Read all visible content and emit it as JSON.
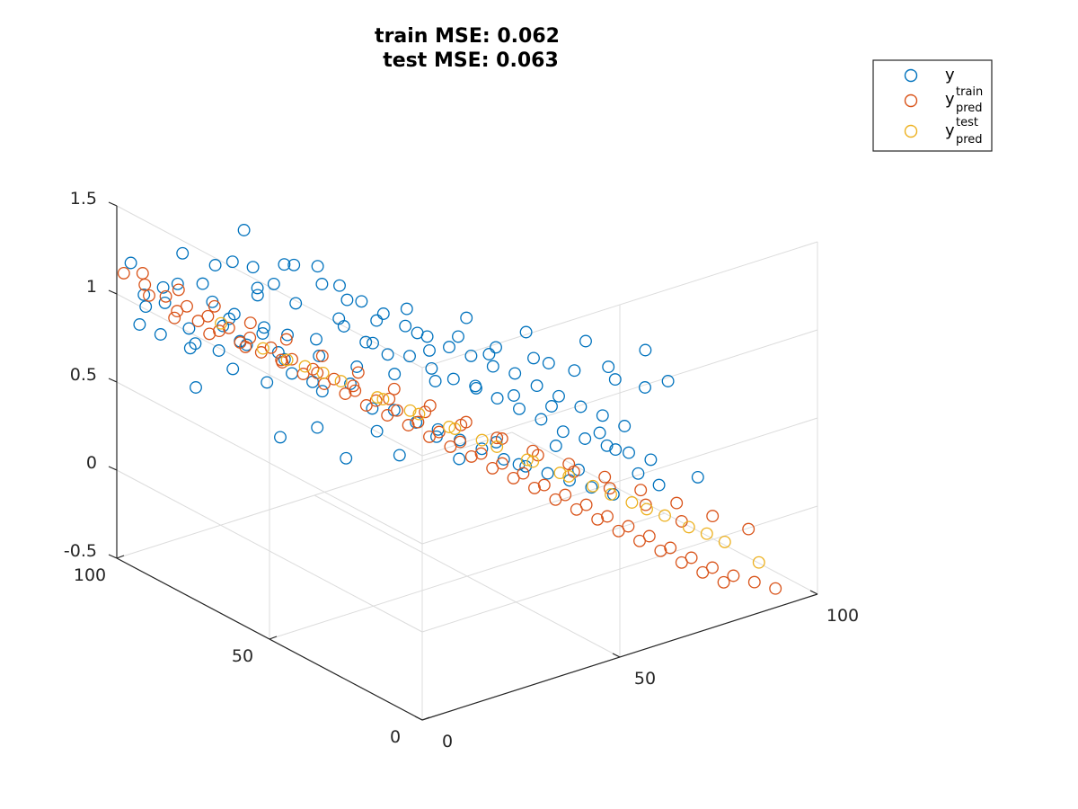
{
  "chart_data": {
    "type": "scatter",
    "title_lines": [
      "train MSE: 0.062",
      "test MSE: 0.063"
    ],
    "axes": {
      "x": {
        "ticks": [
          "0",
          "50",
          "100"
        ],
        "range": [
          0,
          100
        ]
      },
      "y": {
        "ticks": [
          "0",
          "50",
          "100"
        ],
        "range": [
          0,
          100
        ]
      },
      "z": {
        "ticks": [
          "-0.5",
          "0",
          "0.5",
          "1",
          "1.5"
        ],
        "range": [
          -0.5,
          1.5
        ]
      }
    },
    "grid": true,
    "legend_position": "top-right",
    "series": [
      {
        "key": "y",
        "label_base": "y",
        "label_sup": "",
        "label_sub": "",
        "color": "#0072BD",
        "description_points": "noisy targets, ~1000 points, spread ±0.35 around plane",
        "points": [
          [
            2,
            98,
            1.18
          ],
          [
            3,
            95,
            1.02
          ],
          [
            5,
            97,
            0.92
          ],
          [
            4,
            90,
            1.1
          ],
          [
            6,
            92,
            0.98
          ],
          [
            8,
            96,
            0.75
          ],
          [
            10,
            93,
            1.05
          ],
          [
            9,
            88,
            0.85
          ],
          [
            12,
            94,
            1.2
          ],
          [
            14,
            90,
            1.05
          ],
          [
            15,
            86,
            0.7
          ],
          [
            13,
            80,
            0.95
          ],
          [
            18,
            92,
            0.9
          ],
          [
            20,
            88,
            1.15
          ],
          [
            17,
            84,
            0.6
          ],
          [
            22,
            90,
            0.82
          ],
          [
            24,
            85,
            1.0
          ],
          [
            26,
            92,
            1.25
          ],
          [
            21,
            78,
            0.55
          ],
          [
            28,
            88,
            0.72
          ],
          [
            30,
            84,
            1.1
          ],
          [
            27,
            80,
            0.62
          ],
          [
            32,
            90,
            0.92
          ],
          [
            34,
            86,
            1.05
          ],
          [
            31,
            76,
            0.5
          ],
          [
            36,
            88,
            0.8
          ],
          [
            38,
            82,
            0.95
          ],
          [
            35,
            78,
            0.4
          ],
          [
            40,
            86,
            1.0
          ],
          [
            42,
            80,
            0.7
          ],
          [
            39,
            74,
            0.45
          ],
          [
            44,
            84,
            0.88
          ],
          [
            46,
            78,
            0.6
          ],
          [
            43,
            72,
            0.3
          ],
          [
            48,
            82,
            0.78
          ],
          [
            50,
            76,
            0.52
          ],
          [
            47,
            70,
            0.28
          ],
          [
            52,
            80,
            0.7
          ],
          [
            54,
            74,
            0.5
          ],
          [
            51,
            68,
            0.2
          ],
          [
            56,
            78,
            0.62
          ],
          [
            58,
            72,
            0.42
          ],
          [
            55,
            66,
            0.15
          ],
          [
            60,
            76,
            0.55
          ],
          [
            62,
            70,
            0.35
          ],
          [
            59,
            64,
            0.08
          ],
          [
            64,
            74,
            0.48
          ],
          [
            66,
            68,
            0.3
          ],
          [
            63,
            62,
            0.02
          ],
          [
            68,
            72,
            0.42
          ],
          [
            70,
            66,
            0.22
          ],
          [
            67,
            60,
            -0.05
          ],
          [
            72,
            70,
            0.35
          ],
          [
            74,
            64,
            0.15
          ],
          [
            71,
            58,
            -0.1
          ],
          [
            76,
            68,
            0.3
          ],
          [
            78,
            62,
            0.08
          ],
          [
            75,
            56,
            -0.15
          ],
          [
            80,
            66,
            0.22
          ],
          [
            82,
            60,
            0.0
          ],
          [
            79,
            54,
            -0.2
          ],
          [
            84,
            64,
            0.15
          ],
          [
            86,
            58,
            -0.05
          ],
          [
            83,
            52,
            -0.25
          ],
          [
            88,
            62,
            0.08
          ],
          [
            90,
            56,
            -0.1
          ],
          [
            87,
            50,
            -0.3
          ],
          [
            92,
            60,
            0.02
          ],
          [
            94,
            54,
            -0.15
          ],
          [
            96,
            58,
            -0.05
          ],
          [
            98,
            52,
            -0.2
          ],
          [
            97,
            48,
            -0.3
          ],
          [
            5,
            99,
            0.8
          ],
          [
            7,
            85,
            0.78
          ],
          [
            11,
            82,
            1.25
          ],
          [
            16,
            95,
            0.65
          ],
          [
            19,
            80,
            1.2
          ],
          [
            23,
            95,
            0.7
          ],
          [
            25,
            75,
            0.6
          ],
          [
            29,
            95,
            0.55
          ],
          [
            33,
            70,
            0.9
          ],
          [
            37,
            95,
            0.45
          ],
          [
            41,
            68,
            0.85
          ],
          [
            45,
            92,
            0.4
          ],
          [
            49,
            65,
            0.75
          ],
          [
            53,
            90,
            0.3
          ],
          [
            57,
            62,
            0.7
          ],
          [
            61,
            88,
            0.22
          ],
          [
            65,
            60,
            0.6
          ],
          [
            69,
            85,
            0.15
          ],
          [
            73,
            58,
            0.5
          ],
          [
            77,
            82,
            0.08
          ],
          [
            81,
            55,
            0.4
          ],
          [
            85,
            80,
            0.0
          ],
          [
            89,
            52,
            0.32
          ],
          [
            93,
            78,
            -0.1
          ],
          [
            95,
            50,
            0.25
          ],
          [
            99,
            70,
            -0.22
          ],
          [
            3,
            78,
            0.65
          ],
          [
            8,
            70,
            0.95
          ],
          [
            14,
            72,
            1.15
          ],
          [
            20,
            70,
            0.9
          ],
          [
            26,
            68,
            0.35
          ],
          [
            32,
            66,
            1.05
          ],
          [
            38,
            64,
            0.28
          ],
          [
            44,
            62,
            0.95
          ],
          [
            50,
            60,
            0.2
          ],
          [
            56,
            58,
            0.85
          ],
          [
            62,
            56,
            0.12
          ],
          [
            68,
            54,
            0.72
          ],
          [
            74,
            52,
            0.05
          ],
          [
            80,
            50,
            0.62
          ],
          [
            86,
            48,
            -0.02
          ],
          [
            92,
            46,
            0.52
          ],
          [
            6,
            60,
            1.1
          ],
          [
            12,
            62,
            0.45
          ],
          [
            18,
            58,
            1.0
          ],
          [
            24,
            56,
            0.3
          ],
          [
            30,
            55,
            0.92
          ],
          [
            36,
            54,
            0.25
          ],
          [
            42,
            52,
            0.82
          ],
          [
            48,
            50,
            0.18
          ],
          [
            54,
            48,
            0.75
          ],
          [
            60,
            46,
            0.1
          ],
          [
            66,
            44,
            0.65
          ],
          [
            72,
            42,
            0.02
          ],
          [
            78,
            40,
            0.58
          ],
          [
            84,
            38,
            -0.05
          ],
          [
            90,
            36,
            0.45
          ],
          [
            96,
            34,
            -0.12
          ]
        ]
      },
      {
        "key": "y_pred_train",
        "label_base": "y",
        "label_sup": "train",
        "label_sub": "pred",
        "color": "#D95319",
        "points": [
          [
            1,
            99,
            1.12
          ],
          [
            4,
            96,
            1.06
          ],
          [
            7,
            93,
            1.0
          ],
          [
            10,
            90,
            0.95
          ],
          [
            13,
            87,
            0.9
          ],
          [
            16,
            84,
            0.84
          ],
          [
            19,
            81,
            0.79
          ],
          [
            22,
            78,
            0.74
          ],
          [
            25,
            75,
            0.68
          ],
          [
            28,
            72,
            0.63
          ],
          [
            31,
            69,
            0.58
          ],
          [
            34,
            66,
            0.52
          ],
          [
            37,
            63,
            0.47
          ],
          [
            40,
            60,
            0.42
          ],
          [
            43,
            57,
            0.36
          ],
          [
            46,
            54,
            0.31
          ],
          [
            49,
            51,
            0.26
          ],
          [
            52,
            48,
            0.2
          ],
          [
            55,
            45,
            0.15
          ],
          [
            58,
            42,
            0.1
          ],
          [
            61,
            39,
            0.04
          ],
          [
            64,
            36,
            -0.01
          ],
          [
            67,
            33,
            -0.06
          ],
          [
            70,
            30,
            -0.12
          ],
          [
            73,
            27,
            -0.17
          ],
          [
            76,
            24,
            -0.22
          ],
          [
            79,
            21,
            -0.28
          ],
          [
            82,
            18,
            -0.33
          ],
          [
            85,
            15,
            -0.38
          ],
          [
            88,
            12,
            -0.42
          ],
          [
            91,
            9,
            -0.45
          ],
          [
            94,
            6,
            -0.48
          ],
          [
            2,
            92,
            1.05
          ],
          [
            6,
            88,
            0.97
          ],
          [
            9,
            85,
            0.92
          ],
          [
            12,
            82,
            0.87
          ],
          [
            15,
            79,
            0.81
          ],
          [
            18,
            76,
            0.76
          ],
          [
            21,
            73,
            0.71
          ],
          [
            24,
            70,
            0.65
          ],
          [
            27,
            67,
            0.6
          ],
          [
            30,
            64,
            0.55
          ],
          [
            33,
            61,
            0.49
          ],
          [
            36,
            58,
            0.44
          ],
          [
            39,
            55,
            0.39
          ],
          [
            42,
            52,
            0.33
          ],
          [
            45,
            49,
            0.28
          ],
          [
            48,
            46,
            0.23
          ],
          [
            51,
            43,
            0.17
          ],
          [
            54,
            40,
            0.12
          ],
          [
            57,
            37,
            0.07
          ],
          [
            60,
            34,
            0.01
          ],
          [
            63,
            31,
            -0.04
          ],
          [
            66,
            28,
            -0.09
          ],
          [
            69,
            25,
            -0.15
          ],
          [
            72,
            22,
            -0.2
          ],
          [
            75,
            19,
            -0.25
          ],
          [
            78,
            16,
            -0.31
          ],
          [
            81,
            13,
            -0.36
          ],
          [
            84,
            10,
            -0.41
          ],
          [
            5,
            98,
            1.1
          ],
          [
            11,
            94,
            1.0
          ],
          [
            17,
            90,
            0.9
          ],
          [
            23,
            86,
            0.8
          ],
          [
            29,
            82,
            0.7
          ],
          [
            35,
            78,
            0.6
          ],
          [
            41,
            74,
            0.5
          ],
          [
            47,
            70,
            0.4
          ],
          [
            53,
            66,
            0.3
          ],
          [
            59,
            62,
            0.2
          ],
          [
            65,
            58,
            0.1
          ],
          [
            71,
            54,
            0.0
          ],
          [
            77,
            50,
            -0.1
          ],
          [
            83,
            46,
            -0.2
          ],
          [
            89,
            42,
            -0.3
          ],
          [
            95,
            38,
            -0.4
          ],
          [
            3,
            85,
            0.98
          ],
          [
            8,
            80,
            0.9
          ],
          [
            14,
            76,
            0.82
          ],
          [
            20,
            72,
            0.74
          ],
          [
            26,
            68,
            0.66
          ],
          [
            32,
            64,
            0.58
          ],
          [
            38,
            60,
            0.5
          ],
          [
            44,
            56,
            0.42
          ],
          [
            50,
            52,
            0.34
          ],
          [
            56,
            48,
            0.26
          ],
          [
            62,
            44,
            0.18
          ],
          [
            68,
            40,
            0.1
          ],
          [
            74,
            36,
            0.02
          ],
          [
            80,
            32,
            -0.06
          ],
          [
            86,
            28,
            -0.14
          ],
          [
            92,
            24,
            -0.22
          ],
          [
            98,
            20,
            -0.3
          ]
        ]
      },
      {
        "key": "y_pred_test",
        "label_base": "y",
        "label_sup": "test",
        "label_sub": "pred",
        "color": "#EDB120",
        "points": [
          [
            20,
            78,
            0.75
          ],
          [
            26,
            72,
            0.66
          ],
          [
            32,
            68,
            0.57
          ],
          [
            38,
            62,
            0.48
          ],
          [
            44,
            58,
            0.39
          ],
          [
            50,
            54,
            0.3
          ],
          [
            56,
            48,
            0.21
          ],
          [
            62,
            44,
            0.12
          ],
          [
            68,
            40,
            0.03
          ],
          [
            74,
            34,
            -0.06
          ],
          [
            80,
            30,
            -0.15
          ],
          [
            86,
            24,
            -0.24
          ],
          [
            92,
            20,
            -0.33
          ],
          [
            96,
            14,
            -0.42
          ],
          [
            35,
            60,
            0.53
          ],
          [
            47,
            52,
            0.35
          ],
          [
            59,
            42,
            0.17
          ],
          [
            71,
            36,
            -0.01
          ],
          [
            83,
            28,
            -0.19
          ],
          [
            41,
            57,
            0.44
          ],
          [
            53,
            49,
            0.26
          ],
          [
            65,
            39,
            0.08
          ],
          [
            77,
            31,
            -0.1
          ],
          [
            89,
            22,
            -0.28
          ],
          [
            29,
            70,
            0.62
          ],
          [
            23,
            74,
            0.7
          ],
          [
            14,
            84,
            0.88
          ]
        ]
      }
    ]
  }
}
